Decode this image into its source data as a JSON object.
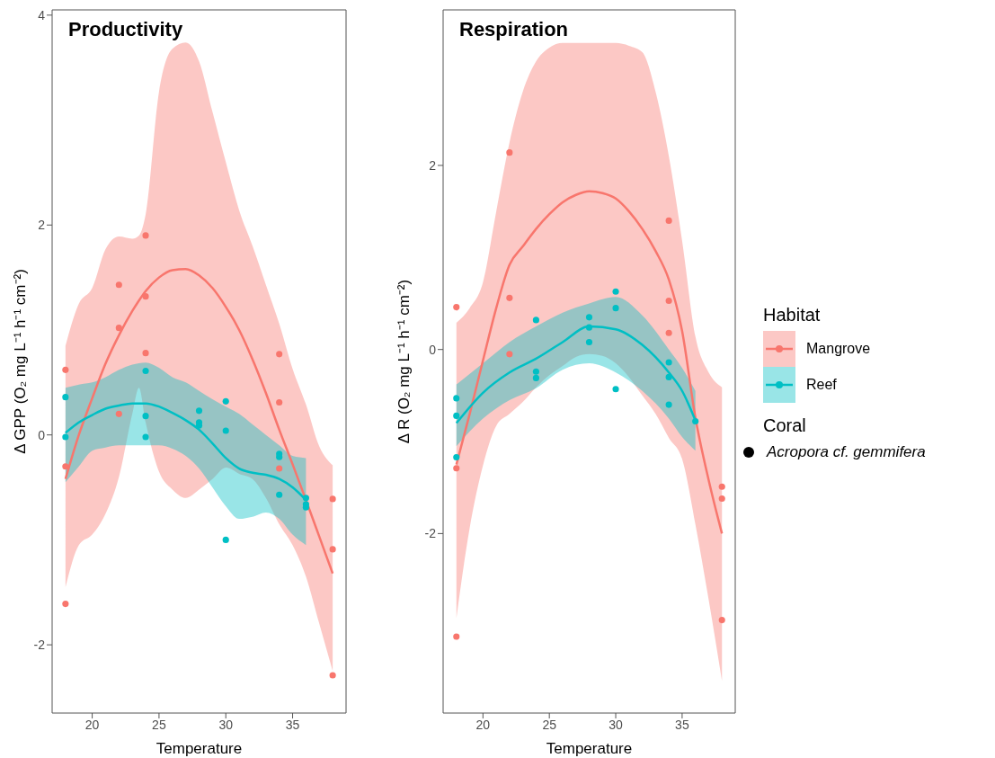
{
  "chart_data": [
    {
      "type": "scatter",
      "title": "Productivity",
      "xlabel": "Temperature",
      "ylabel": "Δ GPP (O₂ mg L⁻¹ h⁻¹ cm⁻²)",
      "xlim": [
        17,
        39
      ],
      "xticks": [
        20,
        25,
        30,
        35
      ],
      "ylim": [
        -2.65,
        4.05
      ],
      "yticks": [
        -2,
        0,
        2,
        4
      ],
      "series": [
        {
          "marker": "circle",
          "color": "#f8766d",
          "x": [
            18,
            18,
            18,
            22,
            22,
            22,
            24,
            24,
            24,
            34,
            34,
            34,
            38,
            38,
            38
          ],
          "values": [
            0.62,
            -0.3,
            -1.61,
            1.43,
            1.02,
            0.2,
            1.9,
            1.32,
            0.78,
            0.77,
            0.31,
            -0.32,
            -0.61,
            -1.09,
            -2.29
          ]
        },
        {
          "marker": "circle",
          "color": "#00bfc4",
          "x": [
            18,
            18,
            24,
            24,
            24,
            28,
            28,
            28,
            30,
            30,
            30,
            34,
            34,
            34,
            36,
            36,
            36
          ],
          "values": [
            0.36,
            -0.02,
            0.61,
            0.18,
            -0.02,
            0.23,
            0.12,
            0.09,
            0.32,
            0.04,
            -1.0,
            -0.18,
            -0.21,
            -0.57,
            -0.6,
            -0.66,
            -0.69
          ]
        },
        {
          "type": "line",
          "marker": "none",
          "color": "#f8766d",
          "x": [
            18,
            19,
            20,
            21,
            22,
            23,
            23.5,
            24,
            25,
            26,
            27,
            28,
            29,
            30,
            31,
            32,
            33,
            34,
            35,
            36,
            37,
            38
          ],
          "values": [
            -0.42,
            0.0,
            0.35,
            0.68,
            0.95,
            1.18,
            1.28,
            1.37,
            1.5,
            1.57,
            1.58,
            1.52,
            1.4,
            1.22,
            1.0,
            0.72,
            0.4,
            0.05,
            -0.28,
            -0.62,
            -0.97,
            -1.32
          ],
          "lower": [
            -1.45,
            -1.05,
            -0.95,
            -0.75,
            -0.4,
            0.2,
            0.45,
            0.12,
            -0.35,
            -0.52,
            -0.6,
            -0.52,
            -0.42,
            -0.31,
            -0.37,
            -0.42,
            -0.6,
            -0.85,
            -1.05,
            -1.35,
            -1.8,
            -2.25
          ],
          "upper": [
            0.85,
            1.25,
            1.4,
            1.77,
            1.89,
            1.87,
            1.9,
            2.1,
            3.27,
            3.68,
            3.74,
            3.56,
            3.08,
            2.6,
            2.14,
            1.8,
            1.43,
            1.06,
            0.63,
            0.29,
            -0.11,
            -0.29
          ]
        },
        {
          "type": "line",
          "marker": "none",
          "color": "#00bfc4",
          "x": [
            18,
            19,
            20,
            21,
            22,
            23,
            24,
            25,
            26,
            27,
            28,
            29,
            30,
            31,
            32,
            33,
            34,
            35,
            36
          ],
          "values": [
            0.02,
            0.12,
            0.19,
            0.25,
            0.28,
            0.3,
            0.3,
            0.27,
            0.21,
            0.14,
            0.05,
            -0.08,
            -0.22,
            -0.32,
            -0.36,
            -0.38,
            -0.42,
            -0.5,
            -0.62
          ],
          "lower": [
            -0.45,
            -0.3,
            -0.15,
            -0.12,
            -0.1,
            -0.1,
            -0.1,
            -0.1,
            -0.13,
            -0.2,
            -0.32,
            -0.5,
            -0.68,
            -0.8,
            -0.78,
            -0.74,
            -0.8,
            -0.95,
            -1.05
          ],
          "upper": [
            0.45,
            0.48,
            0.5,
            0.55,
            0.62,
            0.67,
            0.69,
            0.64,
            0.55,
            0.5,
            0.42,
            0.34,
            0.27,
            0.2,
            0.1,
            0.0,
            -0.1,
            -0.2,
            -0.22
          ]
        }
      ]
    },
    {
      "type": "scatter",
      "title": "Respiration",
      "xlabel": "Temperature",
      "ylabel": "Δ R (O₂ mg L⁻¹ h⁻¹ cm⁻²)",
      "xlim": [
        17,
        39
      ],
      "xticks": [
        20,
        25,
        30,
        35
      ],
      "ylim": [
        -3.95,
        3.69
      ],
      "yticks": [
        -2,
        0,
        2
      ],
      "legend": "right",
      "legend_title": "Habitat",
      "annotations": [
        "Coral",
        "Acropora cf. gemmifera"
      ],
      "series": [
        {
          "name": "Mangrove",
          "marker": "circle",
          "color": "#f8766d",
          "x": [
            18,
            18,
            18,
            22,
            22,
            22,
            34,
            34,
            34,
            38,
            38,
            38
          ],
          "values": [
            0.46,
            -1.29,
            -3.12,
            2.14,
            0.56,
            -0.05,
            1.4,
            0.53,
            0.18,
            -1.49,
            -1.62,
            -2.94
          ]
        },
        {
          "name": "Reef",
          "marker": "circle",
          "color": "#00bfc4",
          "x": [
            18,
            18,
            18,
            24,
            24,
            24,
            28,
            28,
            28,
            30,
            30,
            30,
            34,
            34,
            34,
            36
          ],
          "values": [
            -0.53,
            -0.72,
            -1.17,
            0.32,
            -0.24,
            -0.31,
            0.35,
            0.24,
            0.08,
            0.63,
            0.45,
            -0.43,
            -0.14,
            -0.3,
            -0.6,
            -0.78
          ]
        },
        {
          "type": "line",
          "marker": "none",
          "color": "#f8766d",
          "x": [
            18,
            19,
            20,
            21,
            22,
            23,
            24,
            25,
            26,
            27,
            28,
            29,
            30,
            31,
            32,
            33,
            34,
            35,
            36,
            37,
            38
          ],
          "values": [
            -1.25,
            -0.7,
            -0.12,
            0.45,
            0.92,
            1.12,
            1.31,
            1.47,
            1.6,
            1.68,
            1.72,
            1.7,
            1.64,
            1.5,
            1.31,
            1.07,
            0.76,
            0.2,
            -0.74,
            -1.42,
            -2.0
          ],
          "lower": [
            -2.92,
            -1.94,
            -1.26,
            -0.83,
            -0.7,
            -0.57,
            -0.41,
            -0.28,
            -0.18,
            -0.08,
            -0.05,
            -0.07,
            -0.15,
            -0.3,
            -0.5,
            -0.7,
            -0.96,
            -1.19,
            -1.9,
            -2.72,
            -3.6
          ],
          "upper": [
            0.29,
            0.45,
            0.73,
            1.5,
            2.25,
            2.8,
            3.13,
            3.28,
            3.33,
            3.33,
            3.33,
            3.33,
            3.33,
            3.3,
            3.23,
            2.8,
            2.1,
            1.18,
            0.14,
            -0.25,
            -0.41
          ]
        },
        {
          "type": "line",
          "marker": "none",
          "color": "#00bfc4",
          "x": [
            18,
            20,
            22,
            24,
            26,
            28,
            30,
            32,
            34,
            35,
            36
          ],
          "values": [
            -0.8,
            -0.47,
            -0.25,
            -0.1,
            0.08,
            0.25,
            0.22,
            0.05,
            -0.25,
            -0.45,
            -0.77
          ],
          "lower": [
            -1.05,
            -0.75,
            -0.55,
            -0.42,
            -0.22,
            -0.15,
            -0.25,
            -0.45,
            -0.75,
            -0.95,
            -1.1
          ],
          "upper": [
            -0.38,
            -0.15,
            0.08,
            0.25,
            0.4,
            0.5,
            0.57,
            0.37,
            0.0,
            -0.2,
            -0.45
          ]
        }
      ]
    }
  ]
}
